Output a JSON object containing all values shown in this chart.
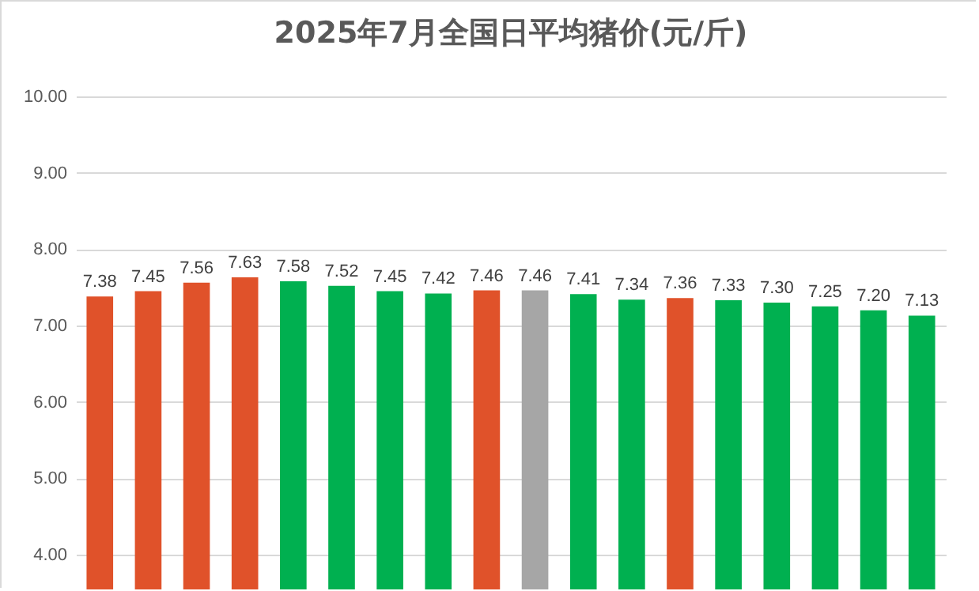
{
  "chart_data": {
    "type": "bar",
    "title": "2025年7月全国日平均猪价(元/斤)",
    "categories": [
      null,
      null,
      null,
      null,
      null,
      null,
      null,
      null,
      null,
      null,
      null,
      null,
      null,
      null,
      null,
      null,
      null,
      null
    ],
    "values": [
      7.38,
      7.45,
      7.56,
      7.63,
      7.58,
      7.52,
      7.45,
      7.42,
      7.46,
      7.46,
      7.41,
      7.34,
      7.36,
      7.33,
      7.3,
      7.25,
      7.2,
      7.13
    ],
    "colors": [
      "#e0522a",
      "#e0522a",
      "#e0522a",
      "#e0522a",
      "#00b050",
      "#00b050",
      "#00b050",
      "#00b050",
      "#e0522a",
      "#a6a6a6",
      "#00b050",
      "#00b050",
      "#e0522a",
      "#00b050",
      "#00b050",
      "#00b050",
      "#00b050",
      "#00b050"
    ],
    "ylim": [
      4,
      10
    ],
    "yticks": [
      {
        "value": 4,
        "label": "4.00"
      },
      {
        "value": 5,
        "label": "5.00"
      },
      {
        "value": 6,
        "label": "6.00"
      },
      {
        "value": 7,
        "label": "7.00"
      },
      {
        "value": 8,
        "label": "8.00"
      },
      {
        "value": 9,
        "label": "9.00"
      },
      {
        "value": 10,
        "label": "10.00"
      }
    ],
    "value_labels": [
      "7.38",
      "7.45",
      "7.56",
      "7.63",
      "7.58",
      "7.52",
      "7.45",
      "7.42",
      "7.46",
      "7.46",
      "7.41",
      "7.34",
      "7.36",
      "7.33",
      "7.30",
      "7.25",
      "7.20",
      "7.13"
    ],
    "grid": "y",
    "tick_labels": "y"
  }
}
